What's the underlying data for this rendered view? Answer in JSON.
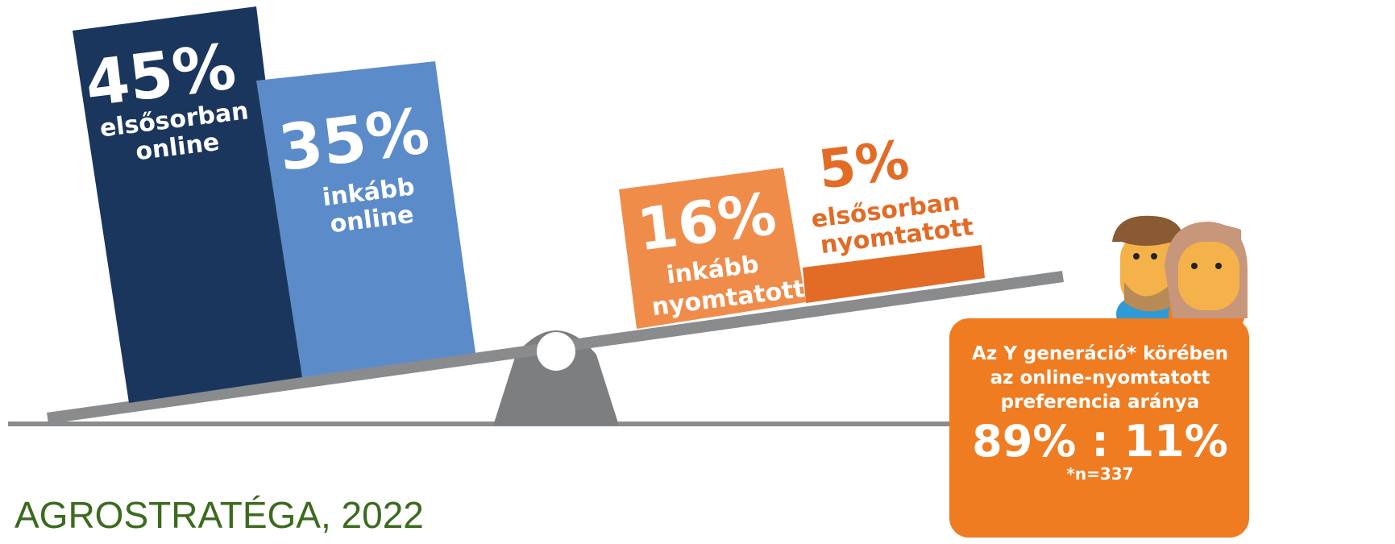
{
  "bars": [
    {
      "value": "45%",
      "label": [
        "elsősorban",
        "online"
      ]
    },
    {
      "value": "35%",
      "label": [
        "inkább",
        "online"
      ]
    },
    {
      "value": "16%",
      "label": [
        "inkább",
        "nyomtatott"
      ]
    },
    {
      "value": "5%",
      "label": [
        "elsősorban",
        "nyomtatott"
      ]
    }
  ],
  "box": {
    "lines": [
      "Az Y generáció* körében",
      "az online-nyomtatott",
      "preferencia aránya"
    ],
    "ratio": "89% : 11%",
    "note": "*n=337"
  },
  "source": "AGROSTRATÉGA, 2022"
}
